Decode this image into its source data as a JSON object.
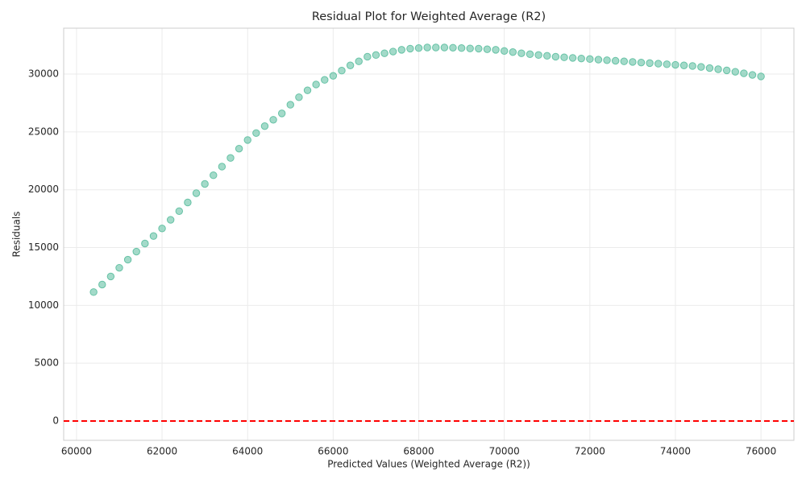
{
  "chart_data": {
    "type": "scatter",
    "title": "Residual Plot for Weighted Average (R2)",
    "x_label": "Predicted Values (Weighted Average (R2))",
    "y_label": "Residuals",
    "color": "#66c2a5",
    "grid": true,
    "reference_line": {
      "y": 0,
      "color": "#ff0000",
      "style": "dashed"
    },
    "xlim": [
      59700,
      76770
    ],
    "ylim": [
      -1670,
      33970
    ],
    "xticks": [
      60000,
      62000,
      64000,
      66000,
      68000,
      70000,
      72000,
      74000,
      76000
    ],
    "yticks": [
      0,
      5000,
      10000,
      15000,
      20000,
      25000,
      30000
    ],
    "x": [
      60400,
      60600,
      60800,
      61000,
      61200,
      61400,
      61600,
      61800,
      62000,
      62200,
      62400,
      62600,
      62800,
      63000,
      63200,
      63400,
      63600,
      63800,
      64000,
      64200,
      64400,
      64600,
      64800,
      65000,
      65200,
      65400,
      65600,
      65800,
      66000,
      66200,
      66400,
      66600,
      66800,
      67000,
      67200,
      67400,
      67600,
      67800,
      68000,
      68200,
      68400,
      68600,
      68800,
      69000,
      69200,
      69400,
      69600,
      69800,
      70000,
      70200,
      70400,
      70600,
      70800,
      71000,
      71200,
      71400,
      71600,
      71800,
      72000,
      72200,
      72400,
      72600,
      72800,
      73000,
      73200,
      73400,
      73600,
      73800,
      74000,
      74200,
      74400,
      74600,
      74800,
      75000,
      75200,
      75400,
      75600,
      75800,
      76000
    ],
    "y": [
      11150,
      11800,
      12500,
      13250,
      13950,
      14650,
      15350,
      16000,
      16650,
      17400,
      18150,
      18900,
      19700,
      20500,
      21250,
      22000,
      22750,
      23550,
      24300,
      24900,
      25500,
      26050,
      26600,
      27350,
      28000,
      28600,
      29100,
      29500,
      29850,
      30300,
      30750,
      31100,
      31500,
      31650,
      31800,
      31950,
      32100,
      32200,
      32250,
      32300,
      32300,
      32300,
      32280,
      32250,
      32220,
      32200,
      32150,
      32100,
      32000,
      31900,
      31800,
      31720,
      31650,
      31580,
      31500,
      31450,
      31400,
      31350,
      31300,
      31250,
      31200,
      31150,
      31100,
      31050,
      31000,
      30950,
      30900,
      30850,
      30800,
      30750,
      30700,
      30620,
      30520,
      30420,
      30320,
      30200,
      30070,
      29930,
      29800
    ]
  }
}
